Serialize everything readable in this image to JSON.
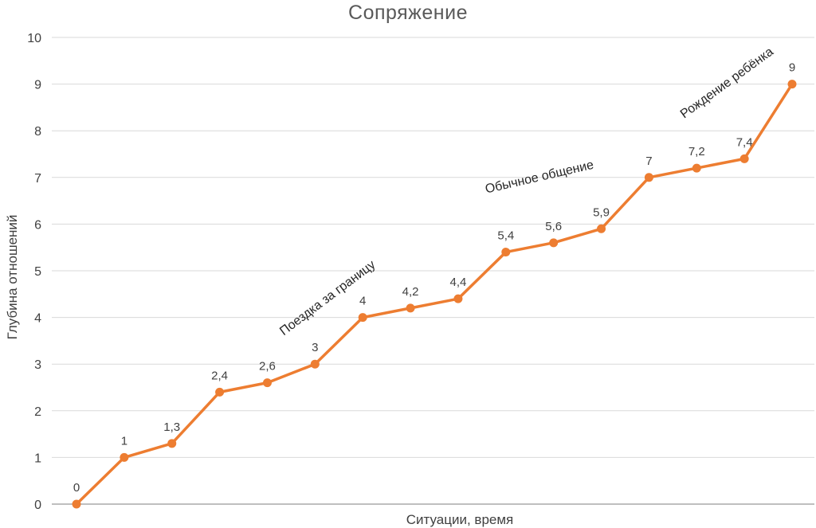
{
  "chart_data": {
    "type": "line",
    "title": "Сопряжение",
    "xlabel": "Ситуации, время",
    "ylabel": "Глубина отношений",
    "ylim": [
      0,
      10
    ],
    "yticks": [
      "0",
      "1",
      "2",
      "3",
      "4",
      "5",
      "6",
      "7",
      "8",
      "9",
      "10"
    ],
    "grid": true,
    "legend": "none",
    "line_color": "#ED7D31",
    "grid_color": "#D9D9D9",
    "axis_line_color": "#BFBFBF",
    "tick_label_color": "#404040",
    "data_label_color": "#404040",
    "annotation_color": "#262626",
    "title_color": "#595959",
    "values": [
      0,
      1,
      1.3,
      2.4,
      2.6,
      3,
      4,
      4.2,
      4.4,
      5.4,
      5.6,
      5.9,
      7,
      7.2,
      7.4,
      9
    ],
    "data_labels": [
      "0",
      "1",
      "1,3",
      "2,4",
      "2,6",
      "3",
      "4",
      "4,2",
      "4,4",
      "5,4",
      "5,6",
      "5,9",
      "7",
      "7,2",
      "7,4",
      "9"
    ],
    "annotations": [
      {
        "text": "Поездка за границу",
        "x": 414,
        "y": 378,
        "angle": -37
      },
      {
        "text": "Обычное общение",
        "x": 678,
        "y": 227,
        "angle": -13
      },
      {
        "text": "Рождение ребёнка",
        "x": 915,
        "y": 108,
        "angle": -36
      }
    ]
  }
}
